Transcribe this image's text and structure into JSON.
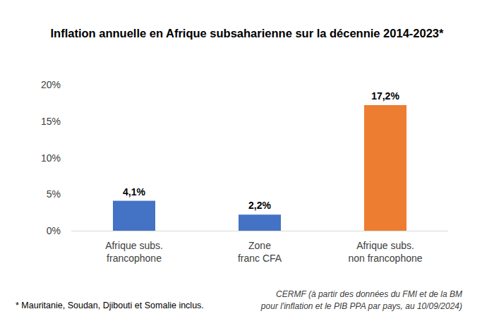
{
  "chart_data": {
    "type": "bar",
    "title": "Inflation annuelle en Afrique subsaharienne sur la décennie 2014-2023*",
    "categories": [
      "Afrique subs.\nfrancophone",
      "Zone\nfranc CFA",
      "Afrique subs.\nnon francophone"
    ],
    "values": [
      4.1,
      2.2,
      17.2
    ],
    "value_labels": [
      "4,1%",
      "2,2%",
      "17,2%"
    ],
    "colors": [
      "#4472c4",
      "#4472c4",
      "#ed7d31"
    ],
    "ylim": [
      0,
      20
    ],
    "yticks": [
      {
        "value": 0,
        "label": "0%"
      },
      {
        "value": 5,
        "label": "5%"
      },
      {
        "value": 10,
        "label": "10%"
      },
      {
        "value": 15,
        "label": "15%"
      },
      {
        "value": 20,
        "label": "20%"
      }
    ],
    "grid": false,
    "data_labels": true,
    "footnote": "* Mauritanie, Soudan, Djibouti et Somalie inclus.",
    "source": "CERMF (à partir des données du FMI et de la BM\npour l'inflation et le PIB PPA par pays, au 10/09/2024)"
  }
}
